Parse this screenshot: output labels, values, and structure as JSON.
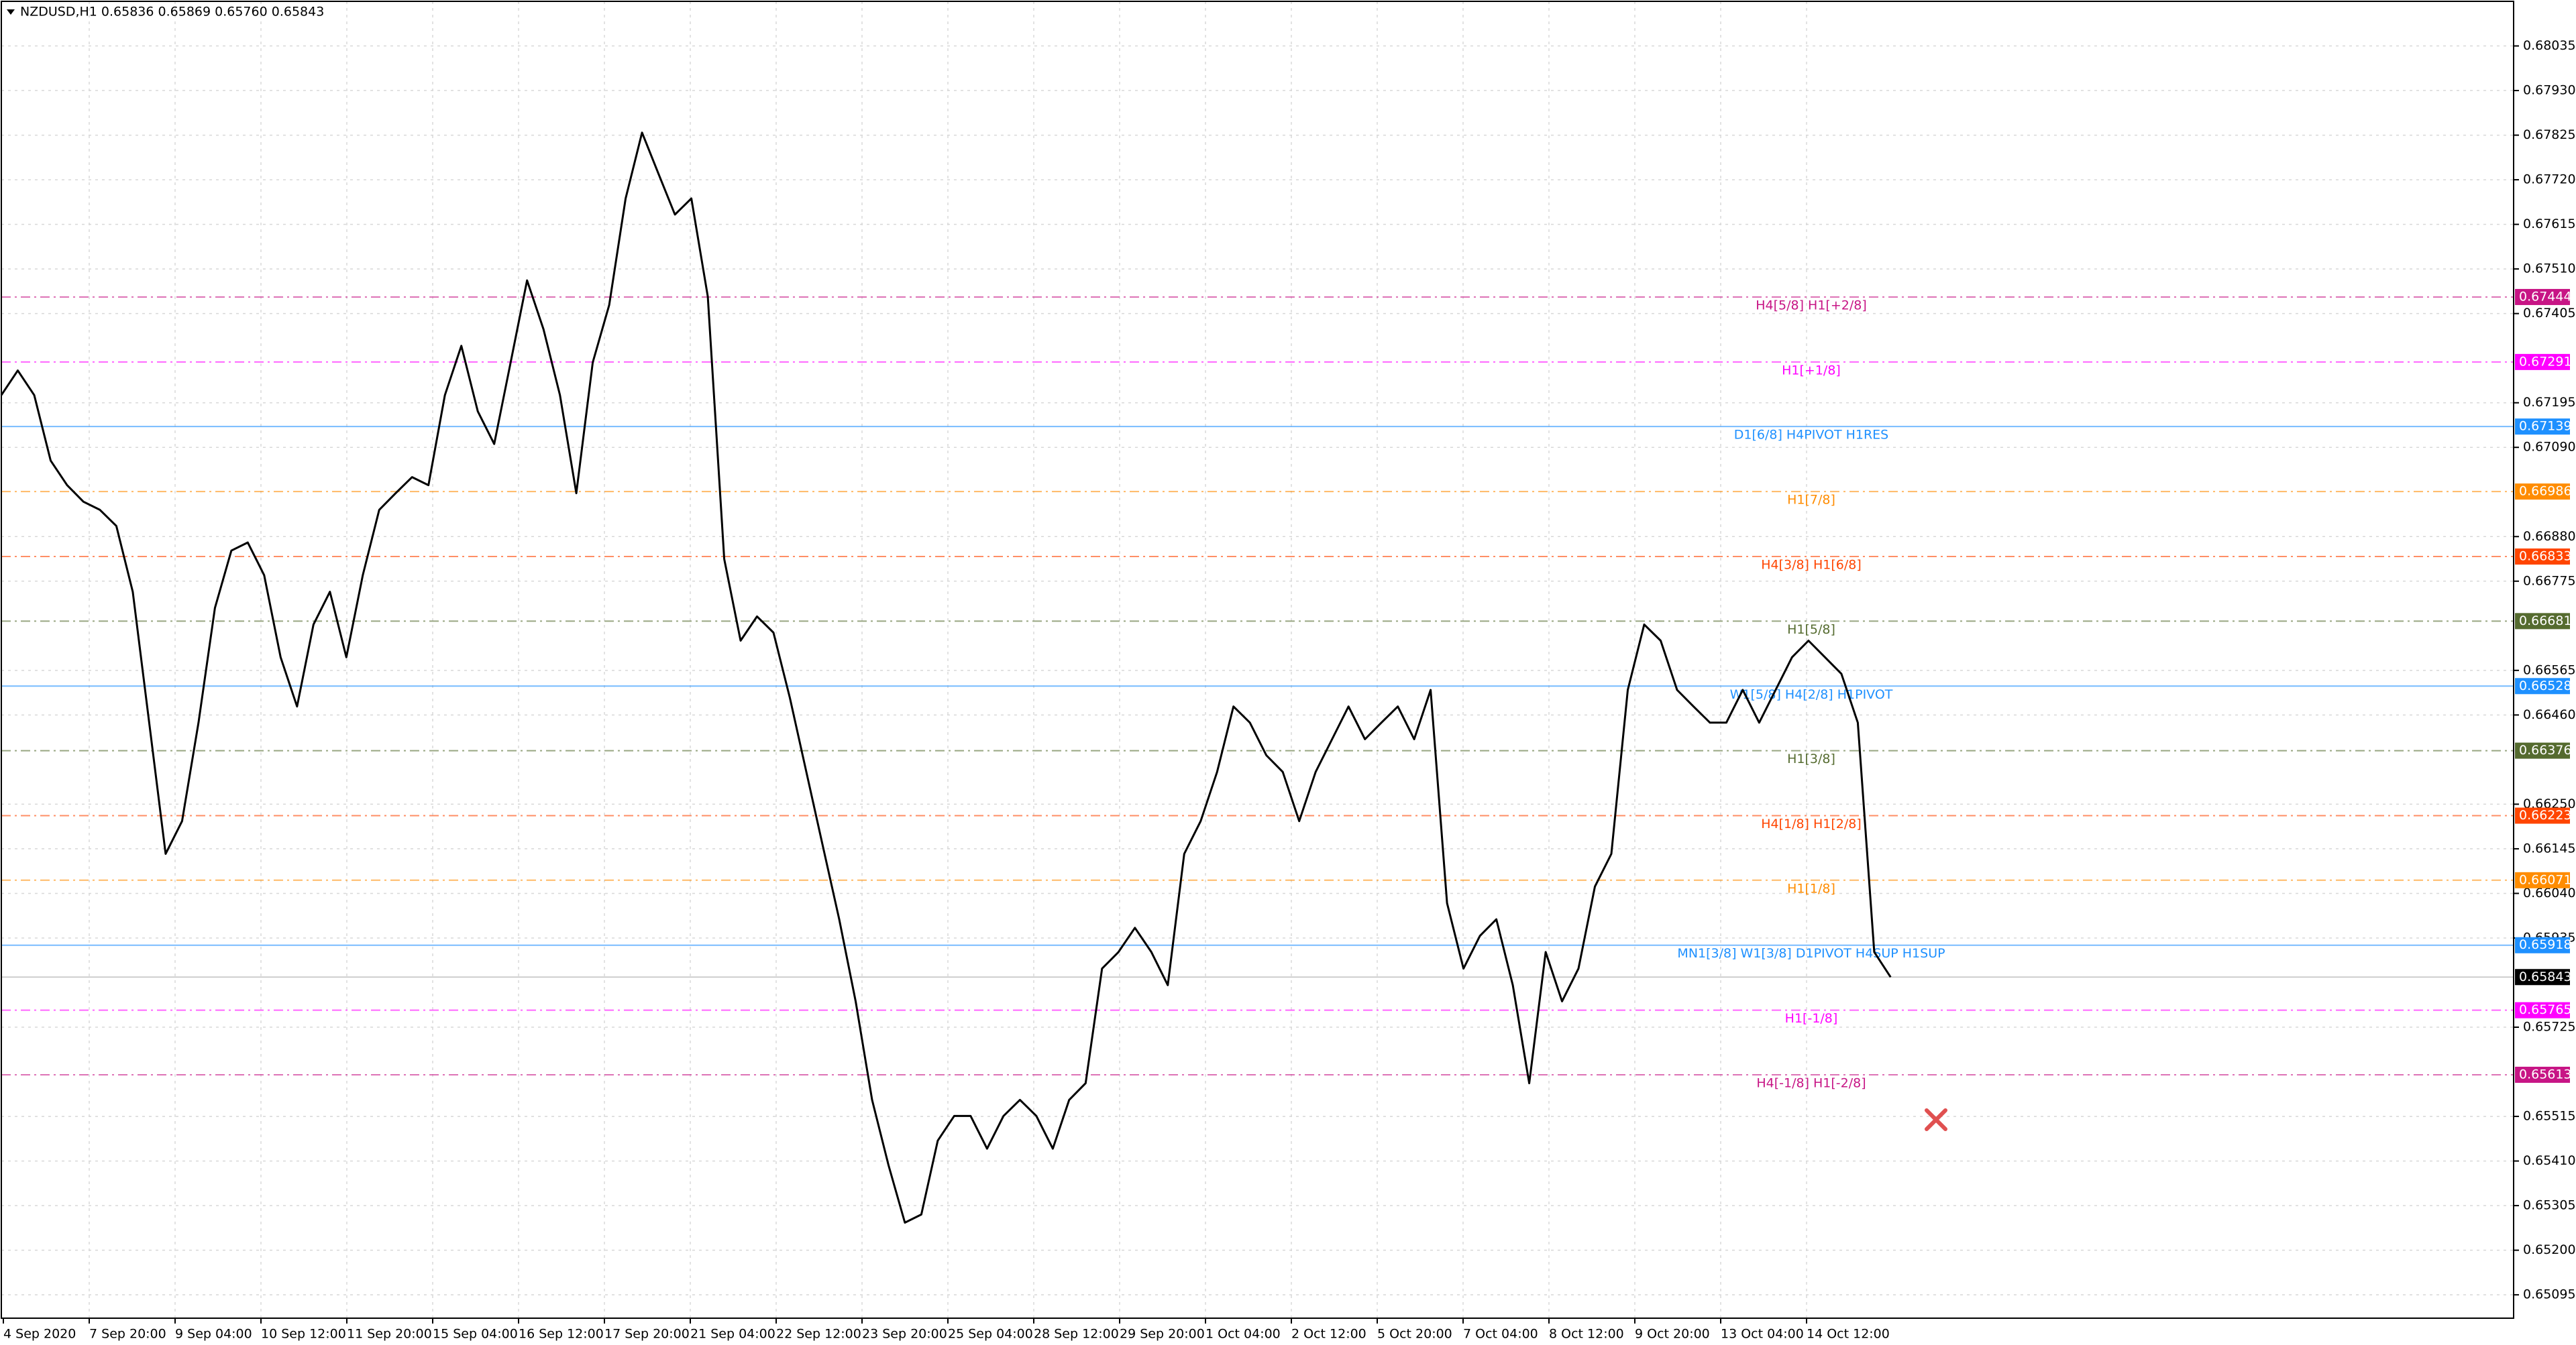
{
  "chart_data": {
    "type": "line",
    "title": "NZDUSD,H1  0.65836 0.65869 0.65760 0.65843",
    "series": [
      {
        "name": "NZDUSD",
        "color": "#000000",
        "values": [
          0.67213,
          0.67271,
          0.67213,
          0.67059,
          0.67001,
          0.66962,
          0.66943,
          0.66905,
          0.6675,
          0.66442,
          0.66133,
          0.6621,
          0.66442,
          0.66712,
          0.66847,
          0.66866,
          0.66789,
          0.66596,
          0.6648,
          0.66673,
          0.6675,
          0.66596,
          0.66789,
          0.66943,
          0.66982,
          0.6702,
          0.67001,
          0.67213,
          0.67329,
          0.67175,
          0.67098,
          0.6729,
          0.67483,
          0.67368,
          0.67213,
          0.66982,
          0.6729,
          0.67425,
          0.67676,
          0.67831,
          0.67734,
          0.67638,
          0.67676,
          0.67445,
          0.66827,
          0.66635,
          0.66692,
          0.66654,
          0.665,
          0.66326,
          0.66152,
          0.65979,
          0.65786,
          0.65554,
          0.654,
          0.65265,
          0.65284,
          0.65458,
          0.65516,
          0.65516,
          0.65439,
          0.65516,
          0.65554,
          0.65516,
          0.65439,
          0.65554,
          0.65593,
          0.65863,
          0.65902,
          0.65959,
          0.65902,
          0.65824,
          0.66133,
          0.6621,
          0.66326,
          0.6648,
          0.66442,
          0.66365,
          0.66326,
          0.6621,
          0.66326,
          0.66403,
          0.6648,
          0.66403,
          0.66442,
          0.6648,
          0.66403,
          0.66519,
          0.66017,
          0.65863,
          0.6594,
          0.65979,
          0.65824,
          0.65593,
          0.65902,
          0.65786,
          0.65863,
          0.66056,
          0.66133,
          0.66519,
          0.66673,
          0.66635,
          0.66519,
          0.6648,
          0.66442,
          0.66442,
          0.66519,
          0.66442,
          0.66519,
          0.66596,
          0.66635,
          0.66596,
          0.66557,
          0.66442,
          0.65902,
          0.65843
        ]
      }
    ],
    "x_labels": [
      "4 Sep 2020",
      "7 Sep 20:00",
      "9 Sep 04:00",
      "10 Sep 12:00",
      "11 Sep 20:00",
      "15 Sep 04:00",
      "16 Sep 12:00",
      "17 Sep 20:00",
      "21 Sep 04:00",
      "22 Sep 12:00",
      "23 Sep 20:00",
      "25 Sep 04:00",
      "28 Sep 12:00",
      "29 Sep 20:00",
      "1 Oct 04:00",
      "2 Oct 12:00",
      "5 Oct 20:00",
      "7 Oct 04:00",
      "8 Oct 12:00",
      "9 Oct 20:00",
      "13 Oct 04:00",
      "14 Oct 12:00"
    ],
    "ylim": [
      0.6504,
      0.6814
    ],
    "yticks": [
      0.68035,
      {
        "value": 0.6793,
        "label": "0.67930"
      },
      0.67825,
      {
        "value": 0.6772,
        "label": "0.67720"
      },
      0.67615,
      {
        "value": 0.6751,
        "label": "0.67510"
      },
      0.67405,
      0.67195,
      {
        "value": 0.6709,
        "label": "0.67090"
      },
      {
        "value": 0.6688,
        "label": "0.66880"
      },
      0.66775,
      0.66565,
      {
        "value": 0.6646,
        "label": "0.66460"
      },
      {
        "value": 0.6625,
        "label": "0.66250"
      },
      0.66145,
      {
        "value": 0.6604,
        "label": "0.66040"
      },
      0.65935,
      0.65725,
      0.65515,
      {
        "value": 0.6541,
        "label": "0.65410"
      },
      0.65305,
      {
        "value": 0.652,
        "label": "0.65200"
      },
      0.65095
    ],
    "grid": true,
    "levels": [
      {
        "price": 0.67444,
        "label": "H4[5/8] H1[+2/8]",
        "color": "#c71585",
        "style": "dashdot"
      },
      {
        "price": 0.67291,
        "label": "H1[+1/8]",
        "color": "#ff00ff",
        "style": "dashdot"
      },
      {
        "price": 0.67139,
        "label": "D1[6/8] H4PIVOT H1RES",
        "color": "#1e90ff",
        "style": "solid"
      },
      {
        "price": 0.66986,
        "label": "H1[7/8]",
        "color": "#ff8c00",
        "style": "dashdot"
      },
      {
        "price": 0.66833,
        "label": "H4[3/8] H1[6/8]",
        "color": "#ff4500",
        "style": "dashdot"
      },
      {
        "price": 0.66681,
        "label": "H1[5/8]",
        "color": "#556b2f",
        "style": "dashdot"
      },
      {
        "price": 0.66528,
        "label": "W1[5/8] H4[2/8] H1PIVOT",
        "color": "#1e90ff",
        "style": "solid"
      },
      {
        "price": 0.66376,
        "label": "H1[3/8]",
        "color": "#556b2f",
        "style": "dashdot"
      },
      {
        "price": 0.66223,
        "label": "H4[1/8] H1[2/8]",
        "color": "#ff4500",
        "style": "dashdot"
      },
      {
        "price": 0.66071,
        "label": "H1[1/8]",
        "color": "#ff8c00",
        "style": "dashdot"
      },
      {
        "price": 0.65918,
        "label": "MN1[3/8] W1[3/8] D1PIVOT H4SUP H1SUP",
        "color": "#1e90ff",
        "style": "solid"
      },
      {
        "price": 0.65765,
        "label": "H1[-1/8]",
        "color": "#ff00ff",
        "style": "dashdot"
      },
      {
        "price": 0.65613,
        "label": "H4[-1/8] H1[-2/8]",
        "color": "#c71585",
        "style": "dashdot"
      }
    ],
    "last_price": 0.65843
  }
}
